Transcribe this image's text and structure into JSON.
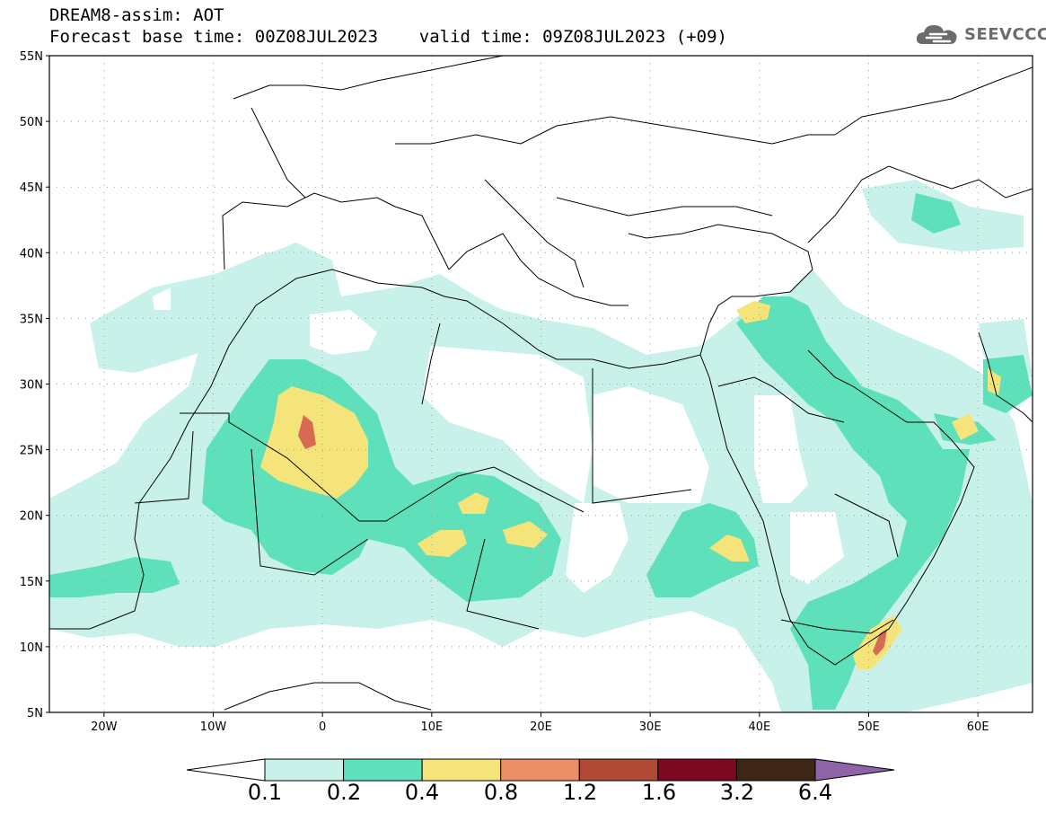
{
  "header": {
    "line1": "DREAM8-assim: AOT",
    "line2": "Forecast base time: 00Z08JUL2023    valid time: 09Z08JUL2023 (+09)"
  },
  "logo": {
    "text": "SEEVCCC",
    "icon": "cloud-icon"
  },
  "map": {
    "lat_labels": [
      "55N",
      "50N",
      "45N",
      "40N",
      "35N",
      "30N",
      "25N",
      "20N",
      "15N",
      "10N",
      "5N"
    ],
    "lon_labels": [
      "20W",
      "10W",
      "0",
      "10E",
      "20E",
      "30E",
      "40E",
      "50E",
      "60E"
    ],
    "lat_range": [
      5,
      55
    ],
    "lon_range": [
      -25,
      65
    ],
    "grid": "dotted"
  },
  "colorbar": {
    "levels": [
      "0.1",
      "0.2",
      "0.4",
      "0.8",
      "1.2",
      "1.6",
      "3.2",
      "6.4"
    ],
    "colors": [
      "#ffffff",
      "#c8f2e9",
      "#5ee0bb",
      "#f5e47a",
      "#ea8f66",
      "#b04a36",
      "#7d0822",
      "#3d2616",
      "#8f63a8"
    ]
  },
  "colors": {
    "light": "#c8f2e9",
    "medium": "#5ee0bb",
    "yellow": "#f5e47a",
    "orange": "#ea8f66",
    "red": "#c45b47"
  }
}
